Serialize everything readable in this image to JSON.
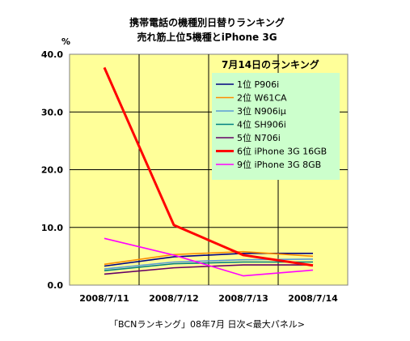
{
  "chart_data": {
    "type": "line",
    "title": [
      "携帯電話の機種別日替りランキング",
      "売れ筋上位5機種とiPhone 3G"
    ],
    "ylabel": "%",
    "xlabel": "「BCNランキング」08年7月 日次<最大パネル>",
    "x": [
      "2008/7/11",
      "2008/7/12",
      "2008/7/13",
      "2008/7/14"
    ],
    "ylim": [
      0,
      40
    ],
    "yticks": [
      "0.0",
      "10.0",
      "20.0",
      "30.0",
      "40.0"
    ],
    "grid": true,
    "legend": {
      "title": "7月14日のランキング",
      "placement": "top-right"
    },
    "series": [
      {
        "name": "1位 P906i",
        "color": "#000080",
        "values": [
          3.3,
          4.9,
          5.5,
          5.5
        ]
      },
      {
        "name": "2位 W61CA",
        "color": "#FF8C00",
        "values": [
          3.6,
          5.3,
          5.8,
          5.0
        ]
      },
      {
        "name": "3位 N906iμ",
        "color": "#5B9BD5",
        "values": [
          2.8,
          4.0,
          4.4,
          4.5
        ]
      },
      {
        "name": "4位 SH906i",
        "color": "#008080",
        "values": [
          2.5,
          3.7,
          4.0,
          4.0
        ]
      },
      {
        "name": "5位 N706i",
        "color": "#660066",
        "values": [
          1.9,
          3.0,
          3.5,
          3.5
        ]
      },
      {
        "name": "6位 iPhone 3G 16GB",
        "color": "#FF0000",
        "values": [
          37.7,
          10.4,
          5.2,
          3.4
        ]
      },
      {
        "name": "9位 iPhone 3G 8GB",
        "color": "#FF00FF",
        "values": [
          8.1,
          5.2,
          1.6,
          2.6
        ]
      }
    ]
  }
}
